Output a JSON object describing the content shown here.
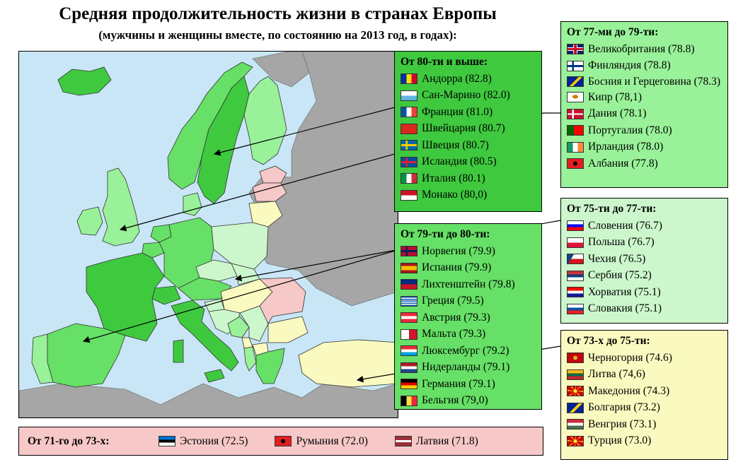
{
  "title": "Средняя продолжительность жизни в странах Европы",
  "subtitle": "(мужчины и женщины вместе, по состоянию на 2013 год, в годах):",
  "groups": {
    "g80": {
      "header": "От 80-ти и выше:",
      "color": "#3fc93f",
      "items": [
        {
          "label": "Андорра (82.8)",
          "flag": "andorra"
        },
        {
          "label": "Сан-Марино (82.0)",
          "flag": "san-marino"
        },
        {
          "label": "Франция (81.0)",
          "flag": "france"
        },
        {
          "label": "Швейцария (80.7)",
          "flag": "switzerland"
        },
        {
          "label": "Швеция (80.7)",
          "flag": "sweden"
        },
        {
          "label": "Исландия (80.5)",
          "flag": "iceland"
        },
        {
          "label": "Италия (80.1)",
          "flag": "italy"
        },
        {
          "label": "Монако (80,0)",
          "flag": "monaco"
        }
      ]
    },
    "g79": {
      "header": "От 79-ти до 80-ти:",
      "color": "#66e066",
      "items": [
        {
          "label": "Норвегия (79.9)",
          "flag": "norway"
        },
        {
          "label": "Испания (79.9)",
          "flag": "spain"
        },
        {
          "label": "Лихтенштейн (79.8)",
          "flag": "liechtenstein"
        },
        {
          "label": "Греция (79.5)",
          "flag": "greece"
        },
        {
          "label": "Австрия (79.3)",
          "flag": "austria"
        },
        {
          "label": "Мальта (79.3)",
          "flag": "malta"
        },
        {
          "label": "Люксембург (79.2)",
          "flag": "luxembourg"
        },
        {
          "label": "Нидерланды (79.1)",
          "flag": "netherlands"
        },
        {
          "label": "Германия (79.1)",
          "flag": "germany"
        },
        {
          "label": "Бельгия (79,0)",
          "flag": "belgium"
        }
      ]
    },
    "g77": {
      "header": "От 77-ми до 79-ти:",
      "color": "#99f299",
      "items": [
        {
          "label": "Великобритания (78.8)",
          "flag": "uk"
        },
        {
          "label": "Финляндия (78.8)",
          "flag": "finland"
        },
        {
          "label": "Босния и Герцеговина (78.3)",
          "flag": "bosnia"
        },
        {
          "label": "Кипр (78,1)",
          "flag": "cyprus"
        },
        {
          "label": "Дания (78.1)",
          "flag": "denmark"
        },
        {
          "label": "Португалия (78.0)",
          "flag": "portugal"
        },
        {
          "label": "Ирландия (78.0)",
          "flag": "ireland"
        },
        {
          "label": "Албания (77.8)",
          "flag": "albania"
        }
      ]
    },
    "g75": {
      "header": "От 75-ти до 77-ти:",
      "color": "#ccf7cc",
      "items": [
        {
          "label": "Словения (76.7)",
          "flag": "slovenia"
        },
        {
          "label": "Польша (76.7)",
          "flag": "poland"
        },
        {
          "label": "Чехия (76.5)",
          "flag": "czech"
        },
        {
          "label": "Сербия (75.2)",
          "flag": "serbia"
        },
        {
          "label": "Хорватия (75.1)",
          "flag": "croatia"
        },
        {
          "label": "Словакия (75.1)",
          "flag": "slovakia"
        }
      ]
    },
    "g73": {
      "header": "От 73-х до 75-ти:",
      "color": "#fafac0",
      "items": [
        {
          "label": "Черногория (74.6)",
          "flag": "montenegro"
        },
        {
          "label": "Литва (74,6)",
          "flag": "lithuania"
        },
        {
          "label": "Македония (74.3)",
          "flag": "macedonia"
        },
        {
          "label": "Болгария (73.2)",
          "flag": "bosnia"
        },
        {
          "label": "Венгрия (73.1)",
          "flag": "hungary"
        },
        {
          "label": "Турция (73.0)",
          "flag": "macedonia"
        }
      ]
    },
    "g71": {
      "header": "От 71-го до 73-х:",
      "color": "#f7c8c8",
      "items": [
        {
          "label": "Эстония (72.5)",
          "flag": "estonia"
        },
        {
          "label": "Румыния (72.0)",
          "flag": "albania"
        },
        {
          "label": "Латвия (71.8)",
          "flag": "latvia"
        }
      ]
    }
  },
  "map": {
    "sea_color": "#c8e6f5",
    "no_data_color": "#a6a6a6",
    "country_colors": {
      "iceland": "#3fc93f",
      "norway": "#66e066",
      "sweden": "#3fc93f",
      "finland": "#99f299",
      "uk": "#99f299",
      "ireland": "#99f299",
      "france": "#3fc93f",
      "spain": "#66e066",
      "portugal": "#99f299",
      "germany": "#66e066",
      "netherlands": "#66e066",
      "belgium": "#66e066",
      "denmark": "#99f299",
      "poland": "#ccf7cc",
      "czech": "#ccf7cc",
      "slovakia": "#ccf7cc",
      "austria": "#66e066",
      "switzerland": "#3fc93f",
      "italy": "#3fc93f",
      "slovenia": "#ccf7cc",
      "croatia": "#ccf7cc",
      "bosnia": "#99f299",
      "serbia": "#ccf7cc",
      "montenegro": "#fafac0",
      "albania": "#99f299",
      "macedonia": "#fafac0",
      "greece": "#66e066",
      "bulgaria": "#fafac0",
      "romania": "#f7c8c8",
      "hungary": "#fafac0",
      "turkey": "#fafac0",
      "estonia": "#f7c8c8",
      "latvia": "#f7c8c8",
      "lithuania": "#fafac0"
    }
  }
}
